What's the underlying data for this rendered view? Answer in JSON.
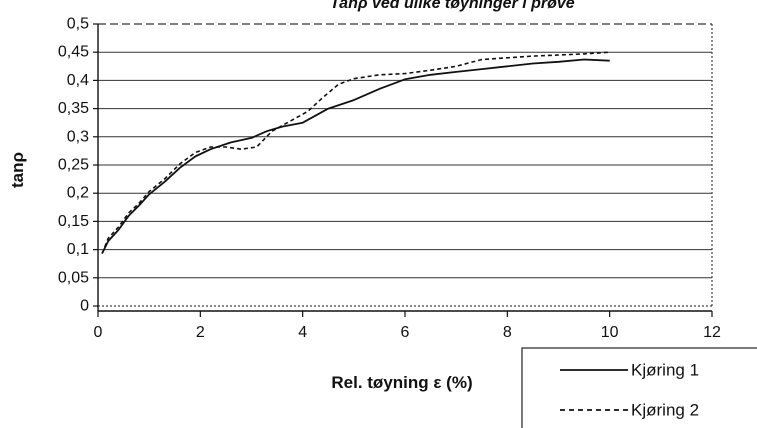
{
  "chart_data": {
    "type": "line",
    "title": "",
    "xlabel": "Rel. tøyning  ε  (%)",
    "ylabel": "tanρ",
    "xlim": [
      0,
      12
    ],
    "ylim": [
      0,
      0.5
    ],
    "x_ticks": [
      0,
      2,
      4,
      6,
      8,
      10,
      12
    ],
    "x_tick_labels": [
      "0",
      "2",
      "4",
      "6",
      "8",
      "10",
      "12"
    ],
    "y_ticks": [
      0,
      0.05,
      0.1,
      0.15,
      0.2,
      0.25,
      0.3,
      0.35,
      0.4,
      0.45,
      0.5
    ],
    "y_tick_labels": [
      "0",
      "0,05",
      "0,1",
      "0,15",
      "0,2",
      "0,25",
      "0,3",
      "0,35",
      "0,4",
      "0,45",
      "0,5"
    ],
    "grid": true,
    "legend_position": "bottom-right",
    "series": [
      {
        "name": "Kjøring 1",
        "style": "solid",
        "color": "#111111",
        "points": [
          [
            0.08,
            0.093
          ],
          [
            0.2,
            0.115
          ],
          [
            0.4,
            0.135
          ],
          [
            0.6,
            0.16
          ],
          [
            0.8,
            0.178
          ],
          [
            1.0,
            0.198
          ],
          [
            1.3,
            0.22
          ],
          [
            1.6,
            0.245
          ],
          [
            1.9,
            0.265
          ],
          [
            2.2,
            0.278
          ],
          [
            2.6,
            0.29
          ],
          [
            3.0,
            0.298
          ],
          [
            3.3,
            0.31
          ],
          [
            3.6,
            0.318
          ],
          [
            4.0,
            0.325
          ],
          [
            4.5,
            0.35
          ],
          [
            5.0,
            0.365
          ],
          [
            5.5,
            0.385
          ],
          [
            6.0,
            0.402
          ],
          [
            6.5,
            0.41
          ],
          [
            7.0,
            0.415
          ],
          [
            7.5,
            0.42
          ],
          [
            8.0,
            0.425
          ],
          [
            8.5,
            0.43
          ],
          [
            9.0,
            0.433
          ],
          [
            9.5,
            0.437
          ],
          [
            10.0,
            0.435
          ]
        ]
      },
      {
        "name": "Kjøring 2",
        "style": "dashed",
        "color": "#111111",
        "points": [
          [
            0.08,
            0.093
          ],
          [
            0.2,
            0.12
          ],
          [
            0.4,
            0.14
          ],
          [
            0.6,
            0.165
          ],
          [
            0.8,
            0.182
          ],
          [
            1.0,
            0.203
          ],
          [
            1.3,
            0.225
          ],
          [
            1.6,
            0.252
          ],
          [
            1.9,
            0.272
          ],
          [
            2.2,
            0.282
          ],
          [
            2.5,
            0.282
          ],
          [
            2.8,
            0.278
          ],
          [
            3.1,
            0.282
          ],
          [
            3.4,
            0.31
          ],
          [
            3.8,
            0.33
          ],
          [
            4.1,
            0.345
          ],
          [
            4.4,
            0.37
          ],
          [
            4.7,
            0.393
          ],
          [
            5.0,
            0.403
          ],
          [
            5.5,
            0.41
          ],
          [
            6.0,
            0.412
          ],
          [
            6.5,
            0.418
          ],
          [
            7.0,
            0.425
          ],
          [
            7.5,
            0.437
          ],
          [
            8.0,
            0.44
          ],
          [
            8.5,
            0.443
          ],
          [
            9.0,
            0.445
          ],
          [
            9.5,
            0.447
          ],
          [
            10.0,
            0.45
          ]
        ]
      }
    ]
  }
}
